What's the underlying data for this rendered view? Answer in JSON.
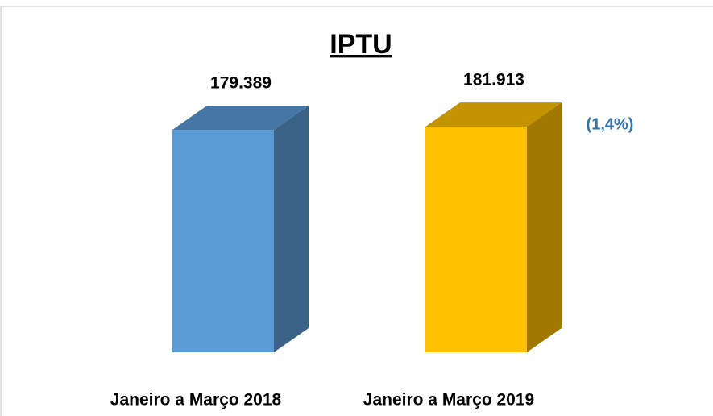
{
  "chart_data": {
    "type": "bar3d",
    "title": "IPTU",
    "categories": [
      "Janeiro a Março 2018",
      "Janeiro a Março 2019"
    ],
    "values": [
      179389,
      181913
    ],
    "value_labels": [
      "179.389",
      "181.913"
    ],
    "colors": [
      "#5b9bd5",
      "#ffc000"
    ],
    "annotation": "(1,4%)",
    "ylim": [
      0,
      182000
    ]
  }
}
